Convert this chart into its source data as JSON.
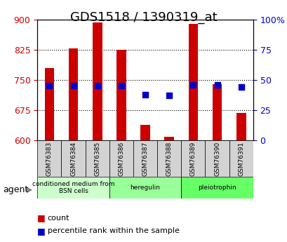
{
  "title": "GDS1518 / 1390319_at",
  "samples": [
    "GSM76383",
    "GSM76384",
    "GSM76385",
    "GSM76386",
    "GSM76387",
    "GSM76388",
    "GSM76389",
    "GSM76390",
    "GSM76391"
  ],
  "count_values": [
    780,
    828,
    893,
    825,
    638,
    608,
    888,
    740,
    668
  ],
  "percentile_values": [
    45,
    45,
    45,
    45,
    38,
    37,
    46,
    46,
    44
  ],
  "ylim_left": [
    600,
    900
  ],
  "ylim_right": [
    0,
    100
  ],
  "yticks_left": [
    600,
    675,
    750,
    825,
    900
  ],
  "yticks_right": [
    0,
    25,
    50,
    75,
    100
  ],
  "yticklabels_right": [
    "0",
    "25",
    "50",
    "75",
    "100%"
  ],
  "groups": [
    {
      "label": "conditioned medium from\nBSN cells",
      "start": 0,
      "end": 3,
      "color": "#ccffcc"
    },
    {
      "label": "heregulin",
      "start": 3,
      "end": 6,
      "color": "#99ff99"
    },
    {
      "label": "pleiotrophin",
      "start": 6,
      "end": 9,
      "color": "#66ff66"
    }
  ],
  "bar_color": "#cc0000",
  "dot_color": "#0000cc",
  "bar_width": 0.4,
  "grid_color": "#000000",
  "bg_color": "#ffffff",
  "tick_label_color_left": "#cc0000",
  "tick_label_color_right": "#0000cc",
  "title_fontsize": 13,
  "agent_label": "agent",
  "legend_count_label": "count",
  "legend_pct_label": "percentile rank within the sample"
}
